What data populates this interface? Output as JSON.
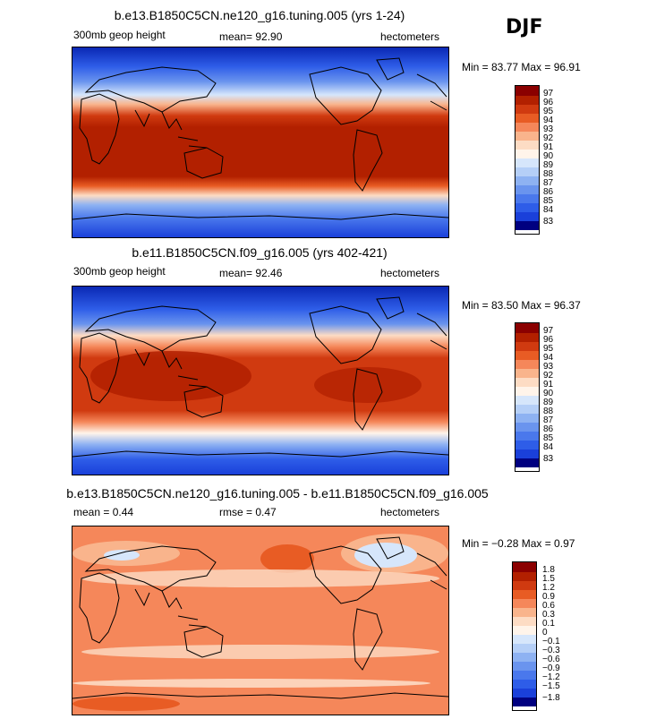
{
  "season_label": "DJF",
  "panels": [
    {
      "title": "b.e13.B1850C5CN.ne120_g16.tuning.005 (yrs 1-24)",
      "left_label": "300mb geop height",
      "center_label": "mean=  92.90",
      "right_label": "hectometers",
      "stats": "Min =  83.77 Max =  96.91",
      "colorbar_colors": [
        "#8b0000",
        "#b22000",
        "#d03a10",
        "#e85c24",
        "#f5875a",
        "#f9b48c",
        "#fddcc4",
        "#fff4ea",
        "#d6e6fb",
        "#b5cff7",
        "#8eb2f2",
        "#6a94ee",
        "#4a78ec",
        "#2e5de8",
        "#1a40da",
        "#0a28b4",
        "#000080"
      ],
      "colorbar_labels": [
        "97",
        "96",
        "95",
        "94",
        "93",
        "92",
        "91",
        "90",
        "89",
        "88",
        "87",
        "86",
        "85",
        "84",
        "83"
      ]
    },
    {
      "title": "b.e11.B1850C5CN.f09_g16.005 (yrs 402-421)",
      "left_label": "300mb geop height",
      "center_label": "mean=  92.46",
      "right_label": "hectometers",
      "stats": "Min =  83.50 Max =  96.37",
      "colorbar_colors": [
        "#8b0000",
        "#b22000",
        "#d03a10",
        "#e85c24",
        "#f5875a",
        "#f9b48c",
        "#fddcc4",
        "#fff4ea",
        "#d6e6fb",
        "#b5cff7",
        "#8eb2f2",
        "#6a94ee",
        "#4a78ec",
        "#2e5de8",
        "#1a40da",
        "#0a28b4",
        "#000080"
      ],
      "colorbar_labels": [
        "97",
        "96",
        "95",
        "94",
        "93",
        "92",
        "91",
        "90",
        "89",
        "88",
        "87",
        "86",
        "85",
        "84",
        "83"
      ]
    },
    {
      "title": "b.e13.B1850C5CN.ne120_g16.tuning.005 - b.e11.B1850C5CN.f09_g16.005",
      "left_label": "mean =    0.44",
      "center_label": "rmse =    0.47",
      "right_label": "hectometers",
      "stats": "Min =  −0.28 Max =   0.97",
      "colorbar_colors": [
        "#8b0000",
        "#b22000",
        "#d03a10",
        "#e85c24",
        "#f5875a",
        "#f9b48c",
        "#fddcc4",
        "#fff4ea",
        "#d6e6fb",
        "#b5cff7",
        "#8eb2f2",
        "#6a94ee",
        "#4a78ec",
        "#2e5de8",
        "#1a40da",
        "#0a28b4",
        "#000080"
      ],
      "colorbar_labels": [
        "1.8",
        "1.5",
        "1.2",
        "0.9",
        "0.6",
        "0.3",
        "0.1",
        "0",
        "−0.1",
        "−0.3",
        "−0.6",
        "−0.9",
        "−1.2",
        "−1.5",
        "−1.8"
      ]
    }
  ]
}
